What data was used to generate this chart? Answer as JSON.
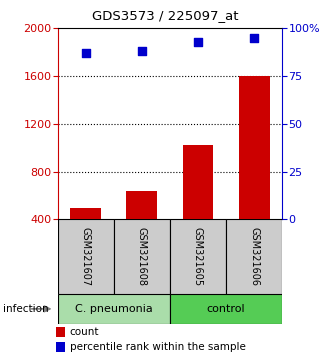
{
  "title": "GDS3573 / 225097_at",
  "samples": [
    "GSM321607",
    "GSM321608",
    "GSM321605",
    "GSM321606"
  ],
  "counts": [
    500,
    635,
    1020,
    1600
  ],
  "percentiles": [
    87,
    88,
    93,
    95
  ],
  "ylim_left": [
    400,
    2000
  ],
  "ylim_right": [
    0,
    100
  ],
  "yticks_left": [
    400,
    800,
    1200,
    1600,
    2000
  ],
  "yticks_right": [
    0,
    25,
    50,
    75,
    100
  ],
  "bar_color": "#cc0000",
  "dot_color": "#0000cc",
  "bar_width": 0.55,
  "groups": [
    {
      "label": "C. pneumonia",
      "n": 2,
      "color": "#aaddaa"
    },
    {
      "label": "control",
      "n": 2,
      "color": "#55cc55"
    }
  ],
  "group_label": "infection",
  "legend_count_label": "count",
  "legend_pct_label": "percentile rank within the sample",
  "bg_color": "#ffffff",
  "plot_bg_color": "#ffffff",
  "left_axis_color": "#cc0000",
  "right_axis_color": "#0000cc",
  "sample_box_color": "#cccccc",
  "gridlines": [
    800,
    1200,
    1600
  ]
}
